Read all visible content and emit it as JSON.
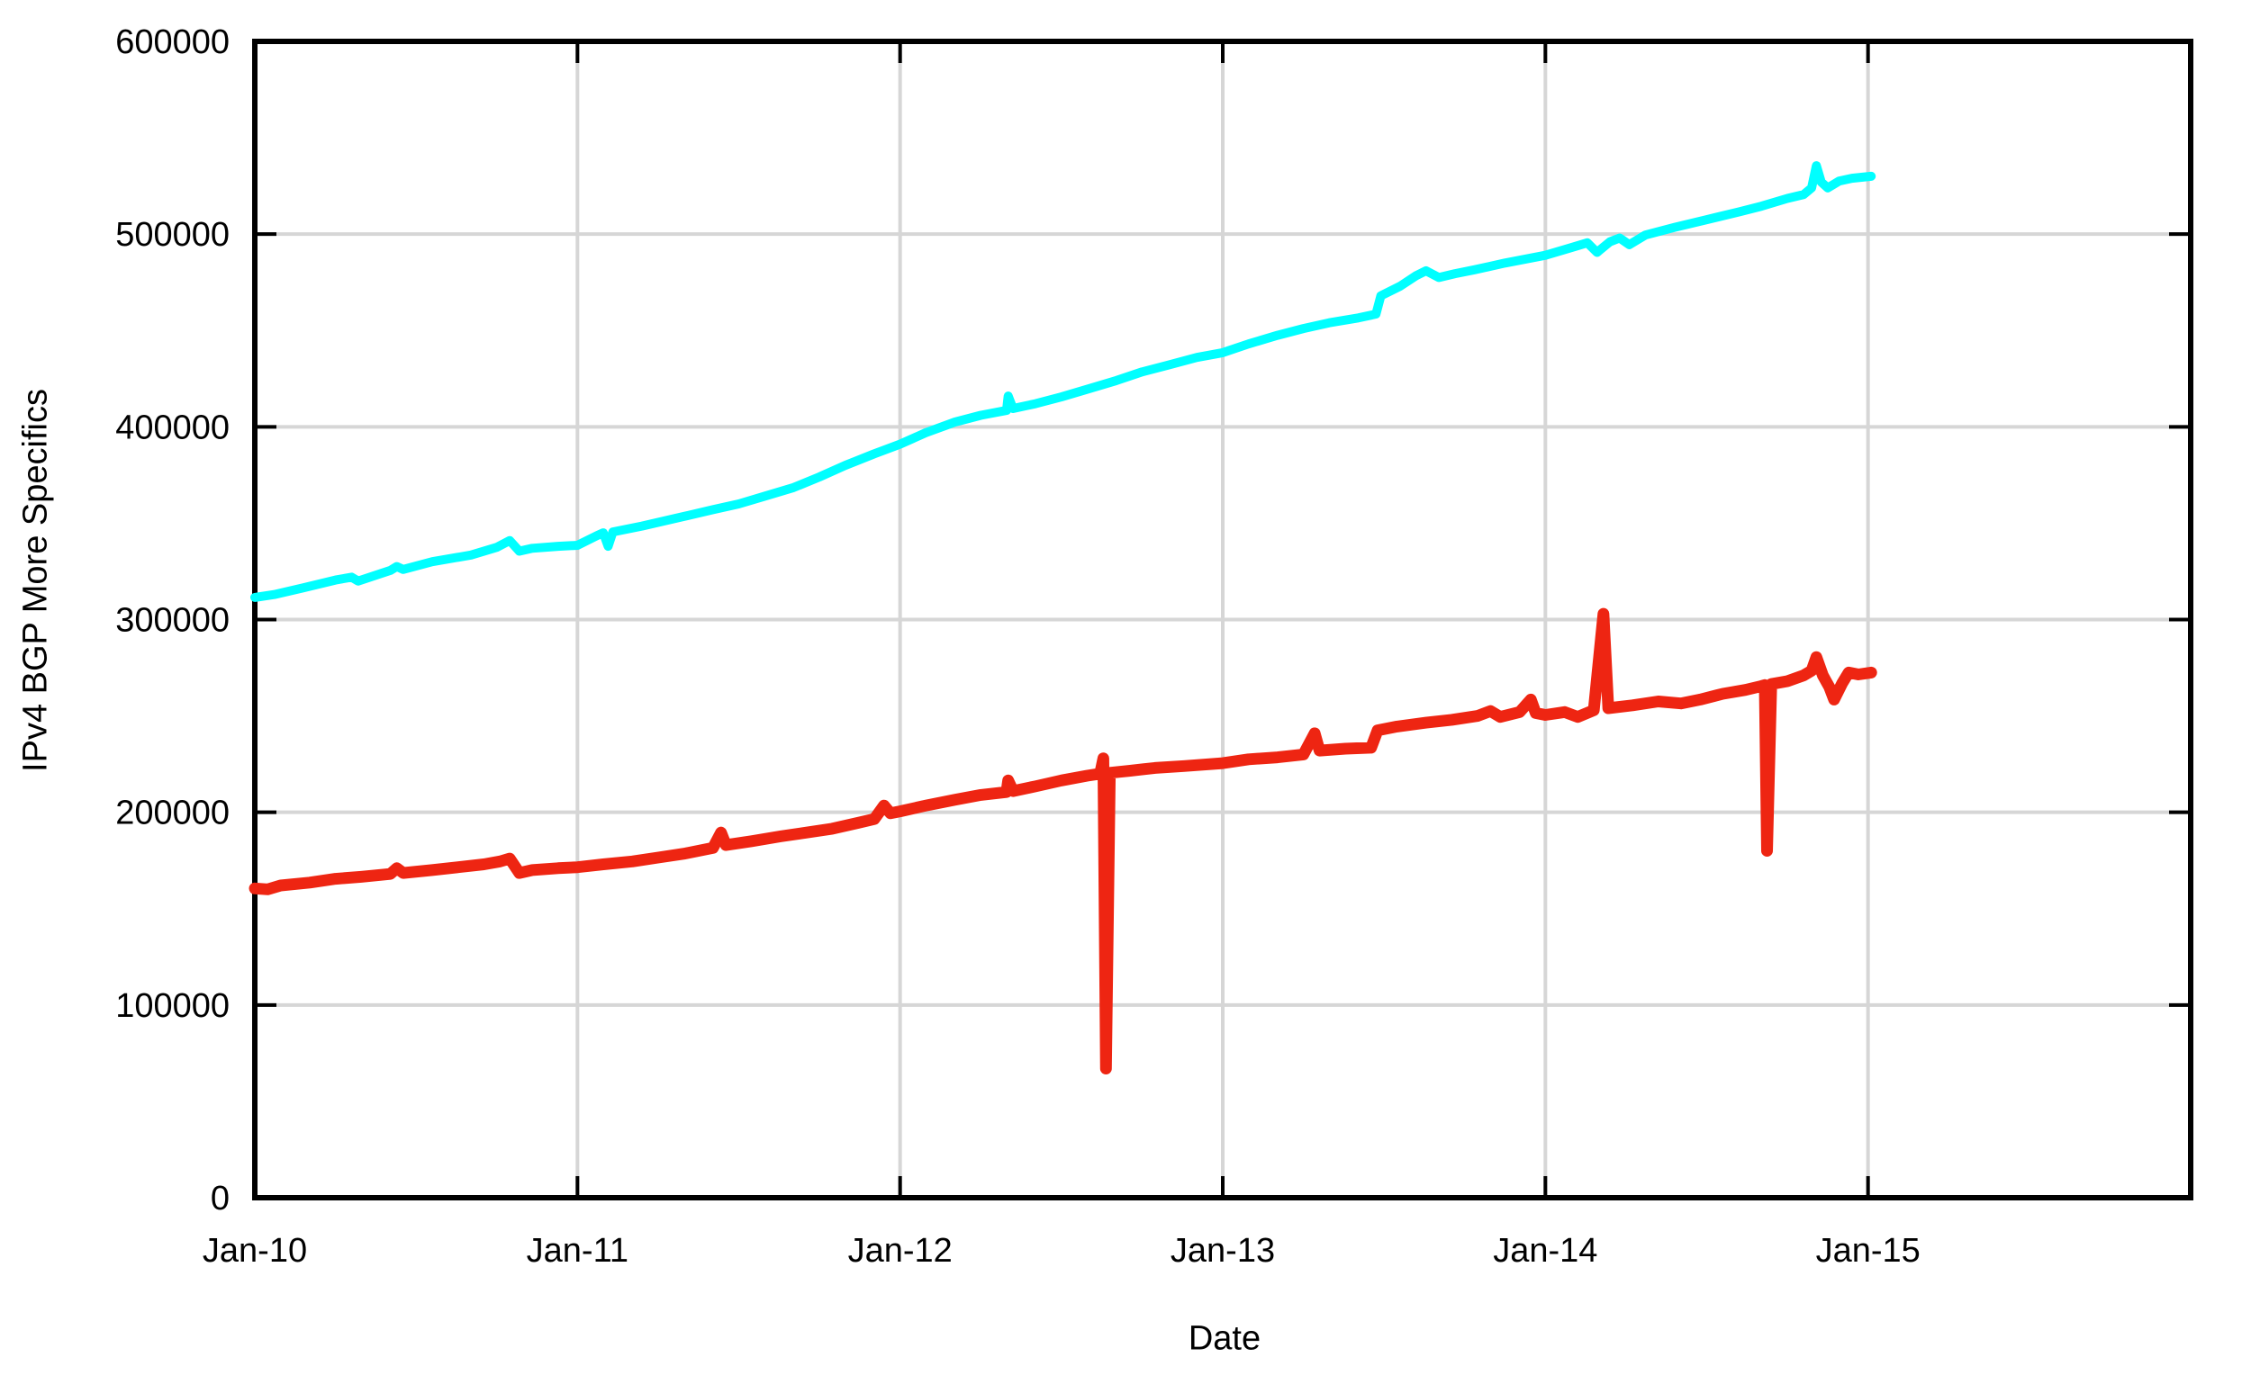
{
  "chart_data": {
    "type": "line",
    "title": "",
    "xlabel": "Date",
    "ylabel": "IPv4 BGP More Specifics",
    "grid": true,
    "legend": "none",
    "colors": {
      "background": "#ffffff",
      "axis": "#000000",
      "grid": "#d6d6d6"
    },
    "x_axis": {
      "min": 2010.0,
      "max": 2016.0,
      "ticks": [
        {
          "v": 2010.0,
          "label": "Jan-10"
        },
        {
          "v": 2011.0,
          "label": "Jan-11"
        },
        {
          "v": 2012.0,
          "label": "Jan-12"
        },
        {
          "v": 2013.0,
          "label": "Jan-13"
        },
        {
          "v": 2014.0,
          "label": "Jan-14"
        },
        {
          "v": 2015.0,
          "label": "Jan-15"
        }
      ]
    },
    "y_axis": {
      "min": 0,
      "max": 600000,
      "ticks": [
        {
          "v": 0,
          "label": "0"
        },
        {
          "v": 100000,
          "label": "100000"
        },
        {
          "v": 200000,
          "label": "200000"
        },
        {
          "v": 300000,
          "label": "300000"
        },
        {
          "v": 400000,
          "label": "400000"
        },
        {
          "v": 500000,
          "label": "500000"
        },
        {
          "v": 600000,
          "label": "600000"
        }
      ]
    },
    "series": [
      {
        "id": "upper-cyan-line",
        "color": "#00ffff",
        "stroke_width": 10,
        "points": [
          [
            2010.0,
            311500
          ],
          [
            2010.06,
            313000
          ],
          [
            2010.15,
            316500
          ],
          [
            2010.25,
            320500
          ],
          [
            2010.3,
            322000
          ],
          [
            2010.32,
            320000
          ],
          [
            2010.42,
            325500
          ],
          [
            2010.44,
            327500
          ],
          [
            2010.46,
            326000
          ],
          [
            2010.55,
            330000
          ],
          [
            2010.67,
            333500
          ],
          [
            2010.75,
            337500
          ],
          [
            2010.79,
            341000
          ],
          [
            2010.82,
            335500
          ],
          [
            2010.86,
            337000
          ],
          [
            2010.94,
            338000
          ],
          [
            2011.0,
            338500
          ],
          [
            2011.06,
            343500
          ],
          [
            2011.08,
            345000
          ],
          [
            2011.095,
            338000
          ],
          [
            2011.11,
            345500
          ],
          [
            2011.2,
            348500
          ],
          [
            2011.33,
            353500
          ],
          [
            2011.42,
            357000
          ],
          [
            2011.5,
            360000
          ],
          [
            2011.58,
            364000
          ],
          [
            2011.67,
            368500
          ],
          [
            2011.75,
            374000
          ],
          [
            2011.83,
            380000
          ],
          [
            2011.92,
            386000
          ],
          [
            2012.0,
            391000
          ],
          [
            2012.08,
            397000
          ],
          [
            2012.17,
            402500
          ],
          [
            2012.25,
            406000
          ],
          [
            2012.33,
            408500
          ],
          [
            2012.335,
            416000
          ],
          [
            2012.35,
            409500
          ],
          [
            2012.42,
            412000
          ],
          [
            2012.5,
            415500
          ],
          [
            2012.58,
            419500
          ],
          [
            2012.67,
            424000
          ],
          [
            2012.75,
            428500
          ],
          [
            2012.83,
            432000
          ],
          [
            2012.92,
            436000
          ],
          [
            2013.0,
            438500
          ],
          [
            2013.08,
            443000
          ],
          [
            2013.17,
            447500
          ],
          [
            2013.25,
            451000
          ],
          [
            2013.33,
            454000
          ],
          [
            2013.42,
            456500
          ],
          [
            2013.475,
            458500
          ],
          [
            2013.49,
            468000
          ],
          [
            2013.55,
            473000
          ],
          [
            2013.6,
            478500
          ],
          [
            2013.63,
            481000
          ],
          [
            2013.67,
            477500
          ],
          [
            2013.72,
            479500
          ],
          [
            2013.78,
            481500
          ],
          [
            2013.875,
            485000
          ],
          [
            2014.0,
            489000
          ],
          [
            2014.08,
            493000
          ],
          [
            2014.13,
            495500
          ],
          [
            2014.16,
            490500
          ],
          [
            2014.2,
            496000
          ],
          [
            2014.23,
            498000
          ],
          [
            2014.26,
            494500
          ],
          [
            2014.31,
            499500
          ],
          [
            2014.4,
            503500
          ],
          [
            2014.5,
            507500
          ],
          [
            2014.6,
            511500
          ],
          [
            2014.67,
            514500
          ],
          [
            2014.75,
            518500
          ],
          [
            2014.8,
            520500
          ],
          [
            2014.825,
            524000
          ],
          [
            2014.84,
            535500
          ],
          [
            2014.855,
            527000
          ],
          [
            2014.875,
            524000
          ],
          [
            2014.91,
            527500
          ],
          [
            2014.95,
            529000
          ],
          [
            2015.01,
            530000
          ]
        ]
      },
      {
        "id": "lower-red-line",
        "color": "#ee2512",
        "stroke_width": 13,
        "points": [
          [
            2010.0,
            160500
          ],
          [
            2010.04,
            160000
          ],
          [
            2010.08,
            162000
          ],
          [
            2010.17,
            163500
          ],
          [
            2010.25,
            165500
          ],
          [
            2010.33,
            166500
          ],
          [
            2010.42,
            168000
          ],
          [
            2010.44,
            171000
          ],
          [
            2010.46,
            168500
          ],
          [
            2010.55,
            170000
          ],
          [
            2010.63,
            171500
          ],
          [
            2010.71,
            173000
          ],
          [
            2010.76,
            174500
          ],
          [
            2010.79,
            176000
          ],
          [
            2010.82,
            168500
          ],
          [
            2010.86,
            170000
          ],
          [
            2010.94,
            171000
          ],
          [
            2011.0,
            171500
          ],
          [
            2011.08,
            173000
          ],
          [
            2011.17,
            174500
          ],
          [
            2011.25,
            176500
          ],
          [
            2011.33,
            178500
          ],
          [
            2011.42,
            181500
          ],
          [
            2011.445,
            189500
          ],
          [
            2011.46,
            183000
          ],
          [
            2011.54,
            185000
          ],
          [
            2011.63,
            187500
          ],
          [
            2011.71,
            189500
          ],
          [
            2011.79,
            191500
          ],
          [
            2011.87,
            194500
          ],
          [
            2011.92,
            196500
          ],
          [
            2011.95,
            203500
          ],
          [
            2011.97,
            199500
          ],
          [
            2012.0,
            200500
          ],
          [
            2012.08,
            203500
          ],
          [
            2012.17,
            206500
          ],
          [
            2012.25,
            209000
          ],
          [
            2012.33,
            210500
          ],
          [
            2012.335,
            216500
          ],
          [
            2012.35,
            211000
          ],
          [
            2012.42,
            213500
          ],
          [
            2012.5,
            216500
          ],
          [
            2012.58,
            219000
          ],
          [
            2012.62,
            220000
          ],
          [
            2012.63,
            228000
          ],
          [
            2012.638,
            67000
          ],
          [
            2012.65,
            220500
          ],
          [
            2012.71,
            221500
          ],
          [
            2012.79,
            223000
          ],
          [
            2012.88,
            224000
          ],
          [
            2013.0,
            225500
          ],
          [
            2013.08,
            227500
          ],
          [
            2013.17,
            228500
          ],
          [
            2013.25,
            230000
          ],
          [
            2013.285,
            241000
          ],
          [
            2013.3,
            232000
          ],
          [
            2013.38,
            233000
          ],
          [
            2013.46,
            233500
          ],
          [
            2013.48,
            242500
          ],
          [
            2013.54,
            244500
          ],
          [
            2013.63,
            246500
          ],
          [
            2013.71,
            248000
          ],
          [
            2013.79,
            250000
          ],
          [
            2013.83,
            252500
          ],
          [
            2013.86,
            249500
          ],
          [
            2013.92,
            252000
          ],
          [
            2013.955,
            258500
          ],
          [
            2013.97,
            251500
          ],
          [
            2014.0,
            250500
          ],
          [
            2014.06,
            252000
          ],
          [
            2014.1,
            249500
          ],
          [
            2014.15,
            253000
          ],
          [
            2014.18,
            303000
          ],
          [
            2014.195,
            254000
          ],
          [
            2014.27,
            255500
          ],
          [
            2014.35,
            257500
          ],
          [
            2014.42,
            256500
          ],
          [
            2014.48,
            258500
          ],
          [
            2014.55,
            261500
          ],
          [
            2014.62,
            263500
          ],
          [
            2014.67,
            265500
          ],
          [
            2014.68,
            266000
          ],
          [
            2014.687,
            180000
          ],
          [
            2014.7,
            266500
          ],
          [
            2014.75,
            268000
          ],
          [
            2014.8,
            271000
          ],
          [
            2014.825,
            273500
          ],
          [
            2014.84,
            280500
          ],
          [
            2014.86,
            271000
          ],
          [
            2014.88,
            265000
          ],
          [
            2014.895,
            258500
          ],
          [
            2014.92,
            267000
          ],
          [
            2014.94,
            272500
          ],
          [
            2014.97,
            271500
          ],
          [
            2015.01,
            272500
          ]
        ]
      }
    ]
  }
}
